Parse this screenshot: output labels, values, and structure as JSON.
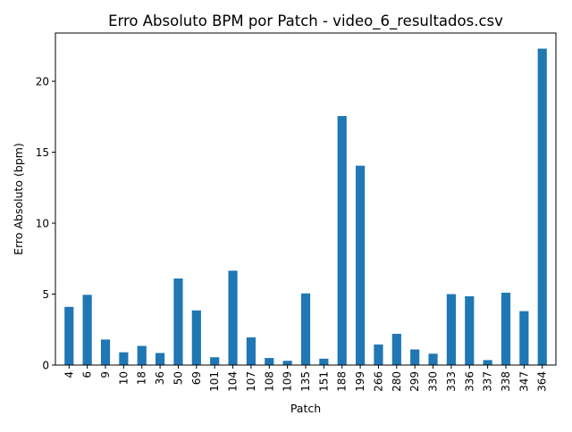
{
  "chart_data": {
    "type": "bar",
    "title": "Erro Absoluto BPM por Patch - video_6_resultados.csv",
    "xlabel": "Patch",
    "ylabel": "Erro Absoluto (bpm)",
    "categories": [
      "4",
      "6",
      "9",
      "10",
      "18",
      "36",
      "50",
      "69",
      "101",
      "104",
      "107",
      "108",
      "109",
      "135",
      "151",
      "188",
      "199",
      "266",
      "280",
      "299",
      "330",
      "333",
      "336",
      "337",
      "338",
      "347",
      "364"
    ],
    "values": [
      4.1,
      4.95,
      1.8,
      0.9,
      1.35,
      0.85,
      6.1,
      3.85,
      0.55,
      6.65,
      1.95,
      0.5,
      0.3,
      5.05,
      0.45,
      17.55,
      14.05,
      1.45,
      2.2,
      1.1,
      0.8,
      5.0,
      4.85,
      0.35,
      5.1,
      3.8,
      22.3
    ],
    "ylim": [
      0,
      23.4
    ],
    "yticks": [
      0,
      5,
      10,
      15,
      20
    ],
    "bar_color": "#1f77b4",
    "grid": false,
    "legend": "none"
  }
}
